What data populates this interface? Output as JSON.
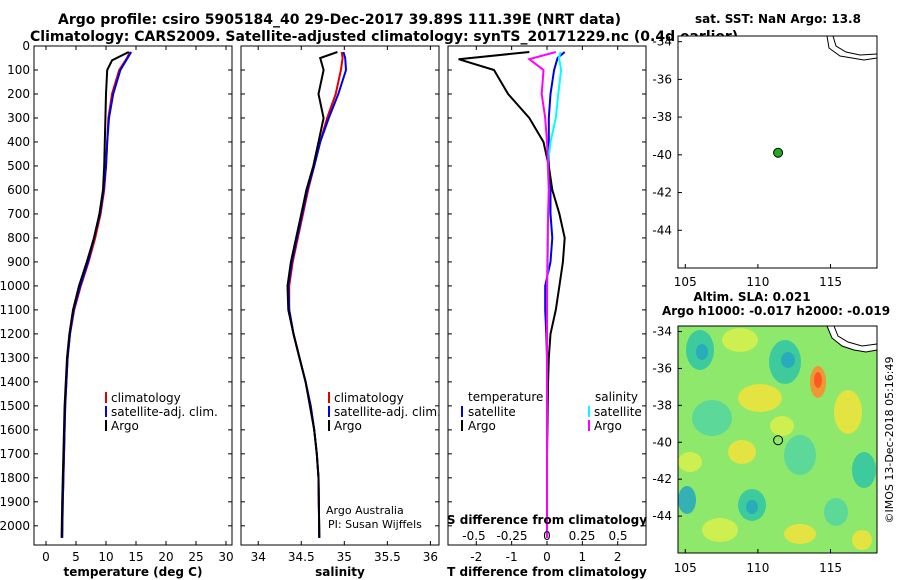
{
  "header": {
    "line1": "Argo profile: csiro 5905184_40 29-Dec-2017 39.89S 111.39E (NRT data)",
    "line2": "Climatology: CARS2009. Satellite-adjusted climatology: synTS_20171229.nc (0.4d earlier)"
  },
  "colors": {
    "argo": "#000000",
    "climatology": "#e00000",
    "satellite": "#0000e0",
    "satellite_s": "#00ffff",
    "argo_s": "#ff00ff"
  },
  "chart_data": [
    {
      "type": "line",
      "xlabel": "temperature (deg C)",
      "ylabel": "",
      "xlim": [
        -2,
        31
      ],
      "ylim": [
        2080,
        0
      ],
      "xticks": [
        0,
        5,
        10,
        15,
        20,
        25,
        30
      ],
      "yticks": [
        0,
        100,
        200,
        300,
        400,
        500,
        600,
        700,
        800,
        900,
        1000,
        1100,
        1200,
        1300,
        1400,
        1500,
        1600,
        1700,
        1800,
        1900,
        2000
      ],
      "legend": [
        "climatology",
        "satellite-adj. clim.",
        "Argo"
      ],
      "series": [
        {
          "name": "climatology",
          "color": "#e00000",
          "x": [
            14,
            13.5,
            12.2,
            11.0,
            10.4,
            10.2,
            10.0,
            9.7,
            9.1,
            8.2,
            7.1,
            5.8,
            4.7,
            4.0,
            3.6,
            3.4,
            3.2,
            3.1,
            3.0,
            2.9,
            2.8,
            2.7
          ],
          "y": [
            25,
            50,
            100,
            200,
            300,
            400,
            500,
            600,
            700,
            800,
            900,
            1000,
            1100,
            1200,
            1300,
            1400,
            1500,
            1600,
            1700,
            1800,
            1900,
            2050
          ]
        },
        {
          "name": "satellite-adj. clim.",
          "color": "#0000e0",
          "x": [
            14.2,
            13.6,
            12.4,
            11.2,
            10.5,
            10.2,
            10.0,
            9.6,
            9.0,
            8.0,
            7.0,
            5.7,
            4.6,
            4.0,
            3.6,
            3.4,
            3.2,
            3.1,
            3.0,
            2.9,
            2.8,
            2.7
          ],
          "y": [
            25,
            50,
            100,
            200,
            300,
            400,
            500,
            600,
            700,
            800,
            900,
            1000,
            1100,
            1200,
            1300,
            1400,
            1500,
            1600,
            1700,
            1800,
            1900,
            2050
          ]
        },
        {
          "name": "Argo",
          "color": "#000000",
          "x": [
            13.8,
            11.0,
            10.2,
            10.0,
            9.9,
            9.8,
            9.7,
            9.5,
            8.9,
            8.0,
            6.8,
            5.5,
            4.5,
            3.9,
            3.5,
            3.3,
            3.1,
            3.0,
            2.9,
            2.8,
            2.7,
            2.6
          ],
          "y": [
            25,
            60,
            100,
            200,
            300,
            400,
            500,
            600,
            700,
            800,
            900,
            1000,
            1100,
            1200,
            1300,
            1400,
            1500,
            1600,
            1700,
            1800,
            1900,
            2050
          ]
        }
      ]
    },
    {
      "type": "line",
      "xlabel": "salinity",
      "xlim": [
        33.8,
        36.1
      ],
      "ylim": [
        2080,
        0
      ],
      "xticks": [
        34,
        34.5,
        35,
        35.5,
        36
      ],
      "legend": [
        "climatology",
        "satellite-adj. clim.",
        "Argo"
      ],
      "annotations": [
        "Argo Australia",
        "PI: Susan Wijffels"
      ],
      "series": [
        {
          "name": "climatology",
          "color": "#e00000",
          "x": [
            34.97,
            34.98,
            34.96,
            34.9,
            34.8,
            34.72,
            34.65,
            34.58,
            34.52,
            34.46,
            34.4,
            34.36,
            34.36,
            34.41,
            34.48,
            34.55,
            34.61,
            34.65,
            34.68,
            34.7,
            34.71
          ],
          "y": [
            25,
            50,
            100,
            200,
            300,
            400,
            500,
            600,
            700,
            800,
            900,
            1000,
            1100,
            1200,
            1300,
            1400,
            1500,
            1600,
            1700,
            1800,
            2050
          ]
        },
        {
          "name": "satellite-adj. clim.",
          "color": "#0000e0",
          "x": [
            34.99,
            35.01,
            35.02,
            34.93,
            34.82,
            34.72,
            34.65,
            34.57,
            34.51,
            34.45,
            34.39,
            34.35,
            34.36,
            34.41,
            34.48,
            34.55,
            34.61,
            34.65,
            34.68,
            34.7,
            34.71
          ],
          "y": [
            25,
            50,
            100,
            200,
            300,
            400,
            500,
            600,
            700,
            800,
            900,
            1000,
            1100,
            1200,
            1300,
            1400,
            1500,
            1600,
            1700,
            1800,
            2050
          ]
        },
        {
          "name": "Argo",
          "color": "#000000",
          "x": [
            34.92,
            34.72,
            34.76,
            34.7,
            34.76,
            34.7,
            34.64,
            34.56,
            34.5,
            34.44,
            34.38,
            34.34,
            34.35,
            34.41,
            34.48,
            34.55,
            34.6,
            34.65,
            34.68,
            34.7,
            34.71
          ],
          "y": [
            25,
            50,
            100,
            200,
            300,
            400,
            500,
            600,
            700,
            800,
            900,
            1000,
            1100,
            1200,
            1300,
            1400,
            1500,
            1600,
            1700,
            1800,
            2050
          ]
        }
      ]
    },
    {
      "type": "line",
      "xlabel": "T difference from climatology",
      "xlabel_top": "S difference from climatology",
      "xlim": [
        -2.8,
        2.8
      ],
      "ylim": [
        2080,
        0
      ],
      "xticks": [
        -2,
        -1,
        0,
        1,
        2
      ],
      "xticks_s": [
        "-0.5",
        "-0.25",
        "0",
        "0.25",
        "0.5"
      ],
      "legend_left_title": "temperature",
      "legend_right_title": "salinity",
      "legend": [
        "satellite",
        "Argo",
        "satellite",
        "Argo"
      ],
      "series": [
        {
          "name": "satellite",
          "quantity": "temperature",
          "color": "#0000e0",
          "x": [
            0.5,
            0.3,
            0.2,
            0.1,
            0.05,
            0.05,
            0.05,
            0.1,
            0.1,
            0.15,
            0.1,
            -0.05,
            -0.05,
            -0.02,
            0,
            0,
            0,
            0,
            0,
            0,
            0
          ],
          "y": [
            25,
            50,
            100,
            200,
            300,
            400,
            500,
            600,
            700,
            800,
            900,
            1000,
            1100,
            1200,
            1300,
            1400,
            1500,
            1600,
            1700,
            1800,
            2050
          ]
        },
        {
          "name": "Argo",
          "quantity": "temperature",
          "color": "#000000",
          "x": [
            -0.5,
            -2.5,
            -1.5,
            -1.1,
            -0.5,
            -0.1,
            0.05,
            0.15,
            0.35,
            0.5,
            0.45,
            0.35,
            0.25,
            0.1,
            0.05,
            0.03,
            0.02,
            0.01,
            0,
            0,
            0
          ],
          "y": [
            25,
            55,
            100,
            200,
            300,
            400,
            500,
            600,
            700,
            800,
            900,
            1000,
            1100,
            1200,
            1300,
            1400,
            1500,
            1600,
            1700,
            1800,
            2050
          ]
        },
        {
          "name": "satellite",
          "quantity": "salinity",
          "color": "#00ffff",
          "x": [
            0.38,
            0.34,
            0.4,
            0.32,
            0.25,
            0.1,
            0.02,
            0.05,
            0.04,
            0.03,
            0.02,
            0.01,
            0,
            0,
            0,
            0,
            0,
            0,
            0,
            0,
            0
          ],
          "y": [
            25,
            50,
            100,
            200,
            300,
            400,
            500,
            600,
            700,
            800,
            900,
            1000,
            1100,
            1200,
            1300,
            1400,
            1500,
            1600,
            1700,
            1800,
            2050
          ]
        },
        {
          "name": "Argo",
          "quantity": "salinity",
          "color": "#ff00ff",
          "x": [
            0.25,
            -0.5,
            -0.1,
            -0.15,
            -0.05,
            0.0,
            0.03,
            0.05,
            0.03,
            0.02,
            0.01,
            0,
            0,
            0,
            0,
            0,
            0,
            0,
            0,
            0,
            0
          ],
          "y": [
            25,
            55,
            100,
            200,
            300,
            400,
            500,
            600,
            700,
            800,
            900,
            1000,
            1100,
            1200,
            1300,
            1400,
            1500,
            1600,
            1700,
            1800,
            2050
          ]
        }
      ]
    },
    {
      "type": "scatter",
      "title": "sat. SST: NaN Argo: 13.8",
      "xlim": [
        104.5,
        118.2
      ],
      "ylim": [
        -46,
        -33.7
      ],
      "xticks": [
        105,
        110,
        115
      ],
      "yticks": [
        -34,
        -36,
        -38,
        -40,
        -42,
        -44
      ],
      "point": {
        "lon": 111.39,
        "lat": -39.89,
        "color": "#22aa22"
      }
    },
    {
      "type": "heatmap",
      "title": "Altim. SLA: 0.021",
      "subtitle": "Argo h1000: -0.017 h2000: -0.019",
      "xlim": [
        104.5,
        118.2
      ],
      "ylim": [
        -46,
        -33.7
      ],
      "xticks": [
        105,
        110,
        115
      ],
      "yticks": [
        -34,
        -36,
        -38,
        -40,
        -42,
        -44
      ],
      "point": {
        "lon": 111.39,
        "lat": -39.89
      },
      "credit": "©IMOS 13-Dec-2018 05:16:49"
    }
  ]
}
